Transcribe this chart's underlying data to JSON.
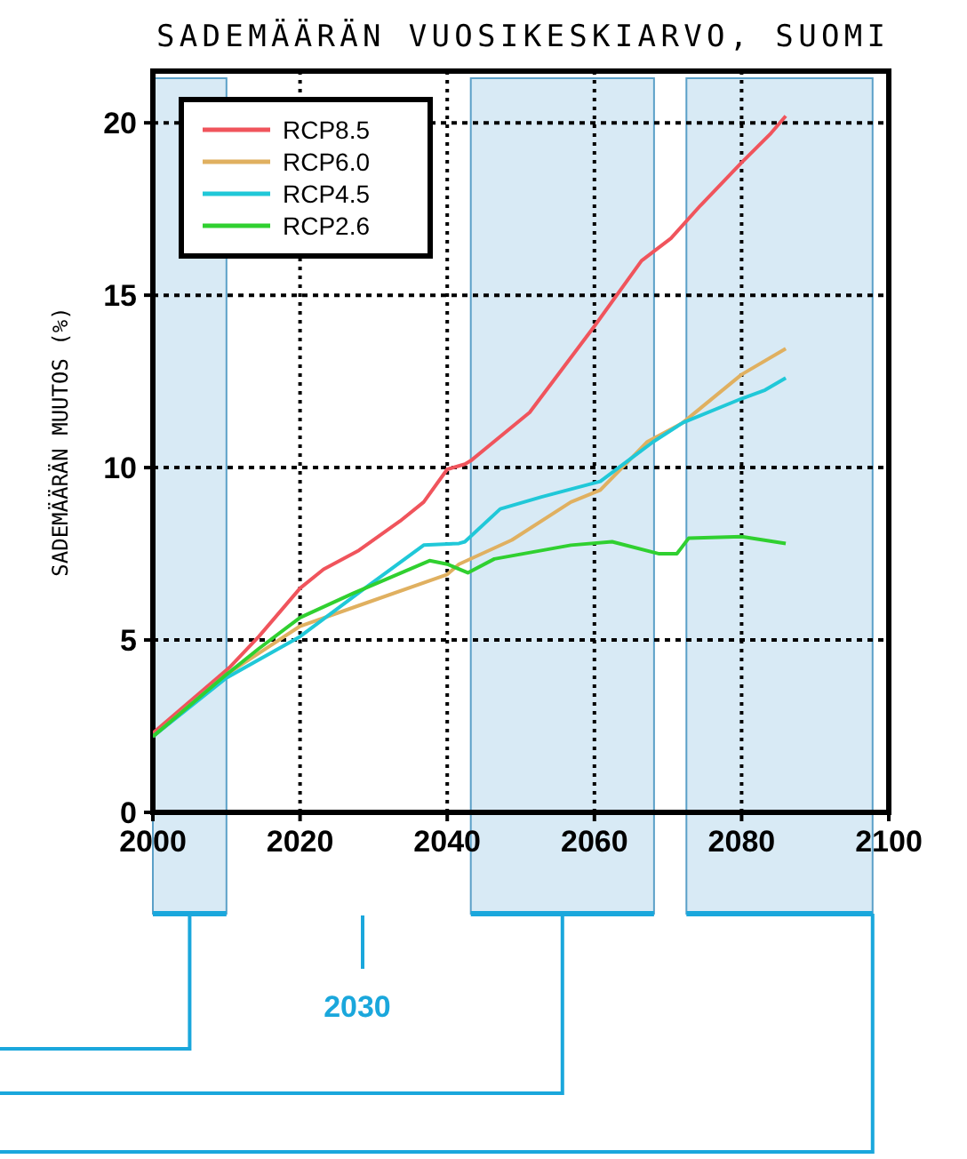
{
  "chart_data": {
    "type": "line",
    "title": "SADEMÄÄRÄN VUOSIKESKIARVO, SUOMI",
    "ylabel": "SADEMÄÄRÄN MUUTOS (%)",
    "xlim": [
      2000,
      2100
    ],
    "xticks": [
      2000,
      2020,
      2040,
      2060,
      2080,
      2100
    ],
    "ylim": [
      0,
      21.5
    ],
    "yticks": [
      0,
      5,
      10,
      15,
      20
    ],
    "grid": true,
    "legend": "top left",
    "line_style": "solid",
    "marker": "none",
    "bands": [
      {
        "axis": "x",
        "from": 2000,
        "to": 2010,
        "color": "#d8eaf5"
      },
      {
        "axis": "x",
        "from": 2043.2,
        "to": 2068.1,
        "color": "#d8eaf5"
      },
      {
        "axis": "x",
        "from": 2072.5,
        "to": 2097.8,
        "color": "#d8eaf5"
      }
    ],
    "annotations": [
      "2030"
    ],
    "series": [
      {
        "name": "RCP8.5",
        "color": "#f0545c",
        "x": [
          2000,
          2010.4,
          2014.4,
          2020,
          2023.2,
          2028,
          2033.6,
          2036.8,
          2040,
          2042.4,
          2043.2,
          2051.2,
          2060,
          2066.4,
          2070.4,
          2074.4,
          2080,
          2084,
          2086
        ],
        "values": [
          2.3,
          4.2,
          5.1,
          6.5,
          7.05,
          7.6,
          8.45,
          9.0,
          9.95,
          10.1,
          10.2,
          11.6,
          14.1,
          16.0,
          16.65,
          17.6,
          18.85,
          19.7,
          20.2
        ]
      },
      {
        "name": "RCP6.0",
        "color": "#e0b060",
        "x": [
          2000,
          2010,
          2020,
          2028,
          2040,
          2041.6,
          2048.8,
          2056.8,
          2060.8,
          2067.2,
          2072,
          2080,
          2086
        ],
        "values": [
          2.2,
          4.0,
          5.4,
          6.0,
          6.9,
          7.2,
          7.9,
          9.0,
          9.35,
          10.75,
          11.3,
          12.7,
          13.45
        ]
      },
      {
        "name": "RCP4.5",
        "color": "#20c8d8",
        "x": [
          2000,
          2010,
          2020,
          2028.8,
          2036.8,
          2041.6,
          2042.4,
          2047.2,
          2052.8,
          2060.8,
          2068,
          2072,
          2080,
          2083.2,
          2086
        ],
        "values": [
          2.2,
          3.9,
          5.1,
          6.5,
          7.75,
          7.8,
          7.85,
          8.8,
          9.15,
          9.6,
          10.75,
          11.3,
          12.0,
          12.25,
          12.6
        ]
      },
      {
        "name": "RCP2.6",
        "color": "#30d030",
        "x": [
          2000,
          2010,
          2014.4,
          2020,
          2027.2,
          2037.6,
          2040,
          2042.8,
          2046.4,
          2056.8,
          2062.4,
          2068.8,
          2071.2,
          2072.8,
          2080,
          2086
        ],
        "values": [
          2.2,
          4.0,
          4.75,
          5.65,
          6.35,
          7.3,
          7.2,
          6.95,
          7.35,
          7.75,
          7.85,
          7.5,
          7.5,
          7.95,
          8.0,
          7.8
        ]
      }
    ]
  }
}
